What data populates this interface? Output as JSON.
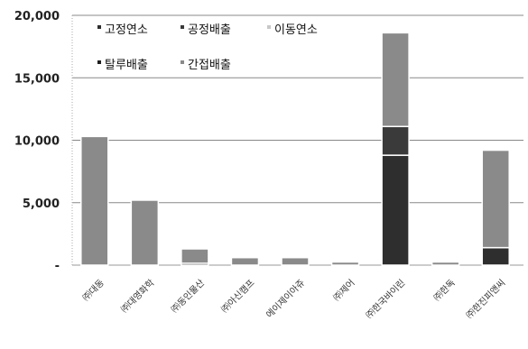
{
  "chart_data": {
    "type": "bar",
    "stacked": true,
    "title": "",
    "xlabel": "",
    "ylabel": "",
    "ylim": [
      0,
      20000
    ],
    "yticks": [
      "-",
      "5,000",
      "10,000",
      "15,000",
      "20,000"
    ],
    "grid": true,
    "legend_position": "top-left",
    "categories": [
      "㈜대동",
      "㈜대영화학",
      "㈜동인물산",
      "㈜아신캠프",
      "에이제이아쥬",
      "㈜제어",
      "㈜한국바이린",
      "㈜한독",
      "㈜한진피앤씨"
    ],
    "series": [
      {
        "name": "고정연소",
        "color": "#2e2e2e",
        "values": [
          0,
          0,
          150,
          0,
          0,
          0,
          8800,
          0,
          1400
        ]
      },
      {
        "name": "공정배출",
        "color": "#3a3a3a",
        "values": [
          0,
          0,
          0,
          0,
          0,
          0,
          2300,
          0,
          0
        ]
      },
      {
        "name": "이동연소",
        "color": "#c8c8c8",
        "values": [
          0,
          0,
          0,
          0,
          0,
          0,
          0,
          0,
          0
        ]
      },
      {
        "name": "탈루배출",
        "color": "#1e1e1e",
        "values": [
          0,
          0,
          0,
          0,
          0,
          0,
          0,
          0,
          0
        ]
      },
      {
        "name": "간접배출",
        "color": "#8a8a8a",
        "values": [
          10300,
          5200,
          1150,
          600,
          600,
          250,
          7500,
          250,
          7800
        ]
      }
    ]
  }
}
